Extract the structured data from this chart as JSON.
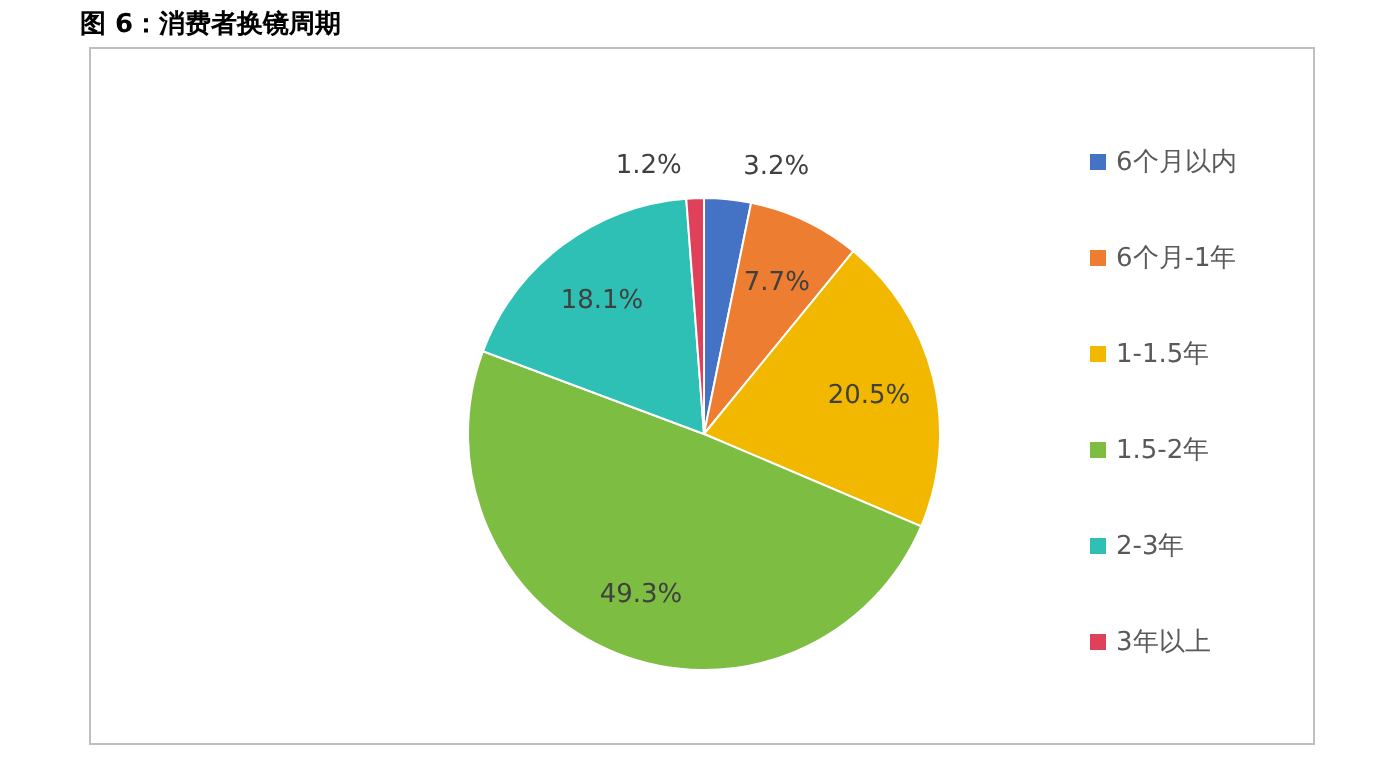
{
  "chart_data": {
    "type": "pie",
    "title": "图 6：消费者换镜周期",
    "categories": [
      "6个月以内",
      "6个月-1年",
      "1-1.5年",
      "1.5-2年",
      "2-3年",
      "3年以上"
    ],
    "values": [
      3.2,
      7.7,
      20.5,
      49.3,
      18.1,
      1.2
    ],
    "value_labels": [
      "3.2%",
      "7.7%",
      "20.5%",
      "49.3%",
      "18.1%",
      "1.2%"
    ],
    "colors": [
      "#4472c4",
      "#ed7d31",
      "#f2b800",
      "#7cbd42",
      "#2fc0b5",
      "#e0415a"
    ],
    "legend": "right"
  }
}
